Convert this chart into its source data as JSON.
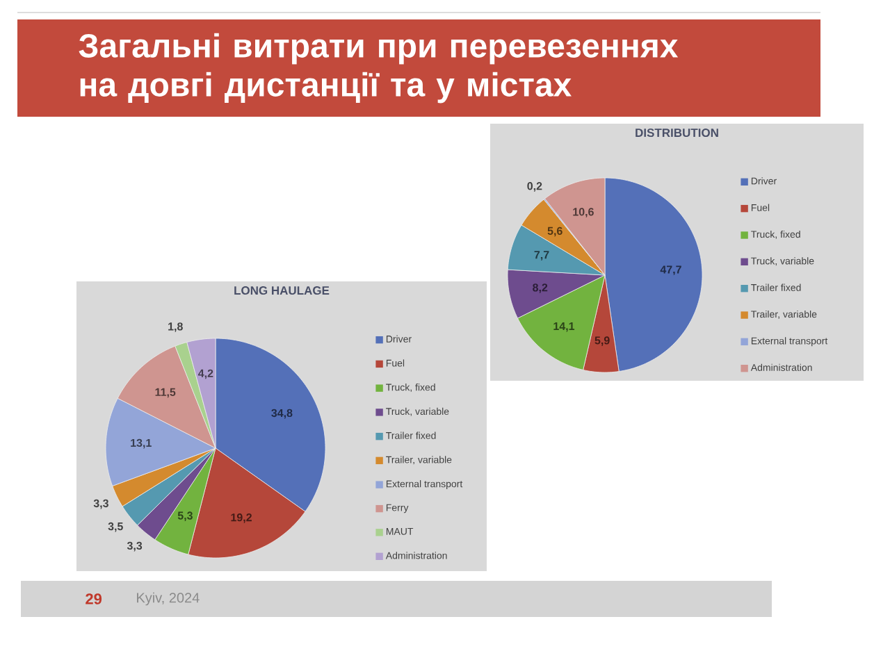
{
  "chart_data": [
    {
      "type": "other",
      "title": "Загальні витрати при перевезеннях на довгі дистанції та у містах",
      "annotations": [
        "29",
        "Kyiv, 2024"
      ]
    },
    {
      "type": "pie",
      "title": "LONG HAULAGE",
      "categories": [
        "Driver",
        "Fuel",
        "Truck, fixed",
        "Truck, variable",
        "Trailer fixed",
        "Trailer, variable",
        "External transport",
        "Ferry",
        "MAUT",
        "Administration"
      ],
      "values": [
        34.8,
        19.2,
        5.3,
        3.3,
        3.5,
        3.3,
        13.1,
        11.5,
        1.8,
        4.2
      ],
      "colors": [
        "#5470B8",
        "#B5473A",
        "#72B33F",
        "#6E4C8E",
        "#5599B0",
        "#D48A2E",
        "#93A5D8",
        "#CF9590",
        "#A9D18E",
        "#B2A1D1"
      ],
      "value_labels": [
        "34,8",
        "19,2",
        "5,3",
        "3,3",
        "3,5",
        "3,3",
        "13,1",
        "11,5",
        "1,8",
        "4,2"
      ],
      "legend": "right"
    },
    {
      "type": "pie",
      "title": "DISTRIBUTION",
      "categories": [
        "Driver",
        "Fuel",
        "Truck, fixed",
        "Truck, variable",
        "Trailer fixed",
        "Trailer, variable",
        "External transport",
        "Administration"
      ],
      "values": [
        47.7,
        5.9,
        14.1,
        8.2,
        7.7,
        5.6,
        0.2,
        10.6
      ],
      "colors": [
        "#5470B8",
        "#B5473A",
        "#72B33F",
        "#6E4C8E",
        "#5599B0",
        "#D48A2E",
        "#93A5D8",
        "#CF9590"
      ],
      "value_labels": [
        "47,7",
        "5,9",
        "14,1",
        "8,2",
        "7,7",
        "5,6",
        "0,2",
        "10,6"
      ],
      "legend": "right"
    }
  ]
}
